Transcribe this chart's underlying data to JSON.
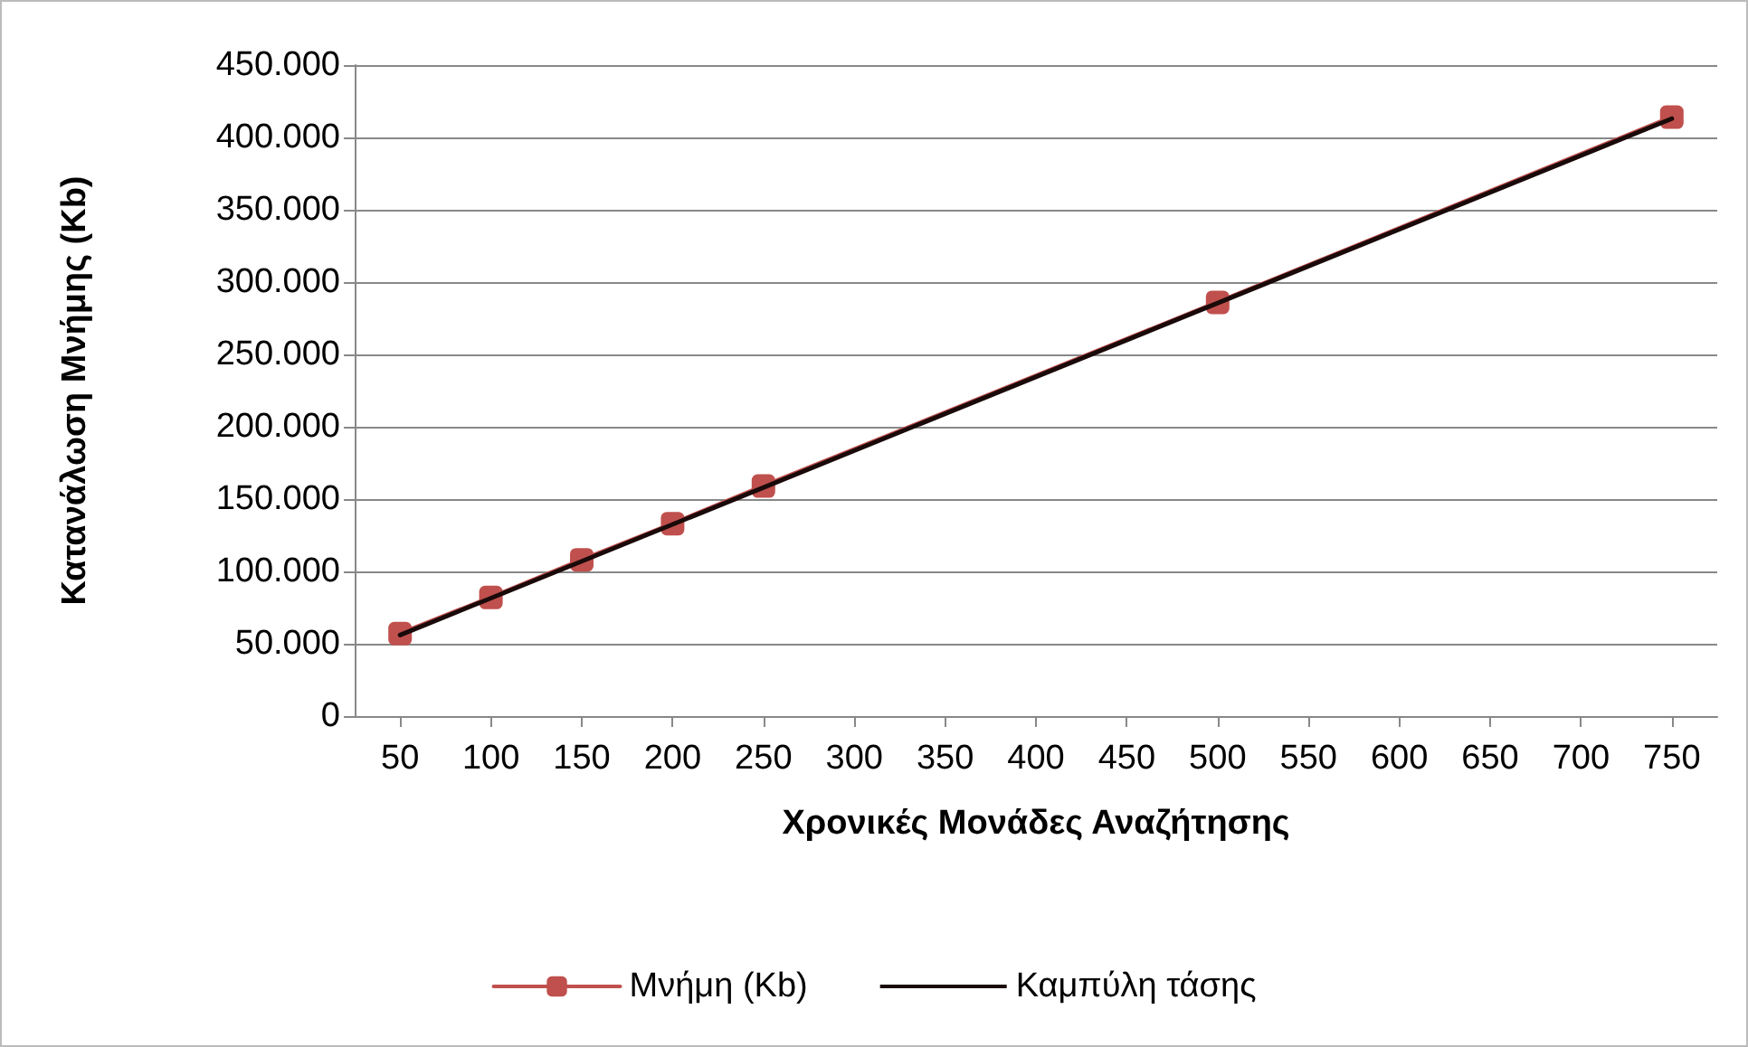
{
  "chart_data": {
    "type": "line",
    "xlabel": "Χρονικές Μονάδες Αναζήτησης",
    "ylabel": "Κατανάλωση Μνήμης (Kb)",
    "x": [
      50,
      100,
      150,
      200,
      250,
      500,
      750
    ],
    "series": [
      {
        "name": "Μνήμη (Kb)",
        "color": "#c0504d",
        "values": [
          57000,
          82000,
          108000,
          133000,
          159000,
          286000,
          414000
        ],
        "marker": "square"
      },
      {
        "name": "Καμπύλη τάσης",
        "color": "#1a0a0a",
        "x": [
          50,
          750
        ],
        "values": [
          56000,
          413000
        ],
        "marker": "none"
      }
    ],
    "xlim": [
      25,
      775
    ],
    "xticks": [
      50,
      100,
      150,
      200,
      250,
      300,
      350,
      400,
      450,
      500,
      550,
      600,
      650,
      700,
      750
    ],
    "ylim": [
      0,
      450000
    ],
    "yticks": [
      {
        "value": 0,
        "label": "0"
      },
      {
        "value": 50000,
        "label": "50.000"
      },
      {
        "value": 100000,
        "label": "100.000"
      },
      {
        "value": 150000,
        "label": "150.000"
      },
      {
        "value": 200000,
        "label": "200.000"
      },
      {
        "value": 250000,
        "label": "250.000"
      },
      {
        "value": 300000,
        "label": "300.000"
      },
      {
        "value": 350000,
        "label": "350.000"
      },
      {
        "value": 400000,
        "label": "400.000"
      },
      {
        "value": 450000,
        "label": "450.000"
      }
    ],
    "grid": "y",
    "legend": "bottom"
  }
}
